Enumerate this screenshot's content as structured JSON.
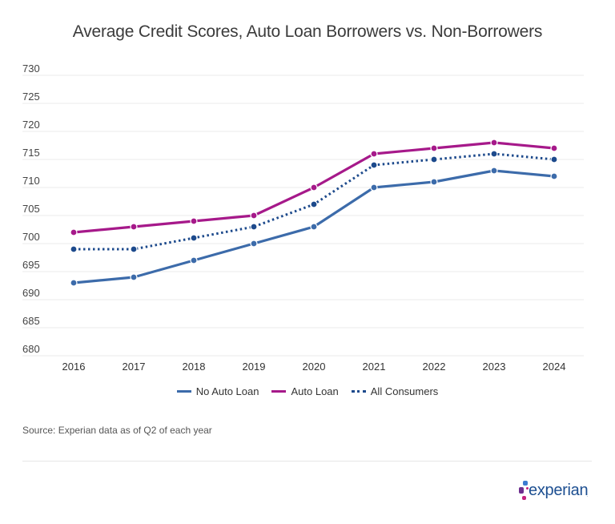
{
  "title": "Average Credit Scores, Auto Loan Borrowers vs. Non-Borrowers",
  "source": "Source: Experian data as of Q2 of each year",
  "logo": {
    "text": "experian",
    "tm": "."
  },
  "legend": [
    {
      "label": "No Auto Loan",
      "color": "#3C6BAA",
      "style": "solid"
    },
    {
      "label": "Auto Loan",
      "color": "#A6198A",
      "style": "solid"
    },
    {
      "label": "All Consumers",
      "color": "#1D4A8C",
      "style": "dotted"
    }
  ],
  "chart_data": {
    "type": "line",
    "title": "Average Credit Scores, Auto Loan Borrowers vs. Non-Borrowers",
    "xlabel": "",
    "ylabel": "",
    "categories": [
      "2016",
      "2017",
      "2018",
      "2019",
      "2020",
      "2021",
      "2022",
      "2023",
      "2024"
    ],
    "yticks": [
      730,
      725,
      720,
      715,
      710,
      705,
      700,
      695,
      690,
      685,
      680
    ],
    "ylim": [
      680,
      730
    ],
    "grid": true,
    "legend_position": "bottom",
    "series": [
      {
        "name": "No Auto Loan",
        "color": "#3C6BAA",
        "style": "solid",
        "values": [
          693,
          694,
          697,
          700,
          703,
          710,
          711,
          713,
          712
        ]
      },
      {
        "name": "Auto Loan",
        "color": "#A6198A",
        "style": "solid",
        "values": [
          702,
          703,
          704,
          705,
          710,
          716,
          717,
          718,
          717
        ]
      },
      {
        "name": "All Consumers",
        "color": "#1D4A8C",
        "style": "dotted",
        "values": [
          699,
          699,
          701,
          703,
          707,
          714,
          715,
          716,
          715
        ]
      }
    ],
    "source": "Source: Experian data as of Q2 of each year"
  }
}
